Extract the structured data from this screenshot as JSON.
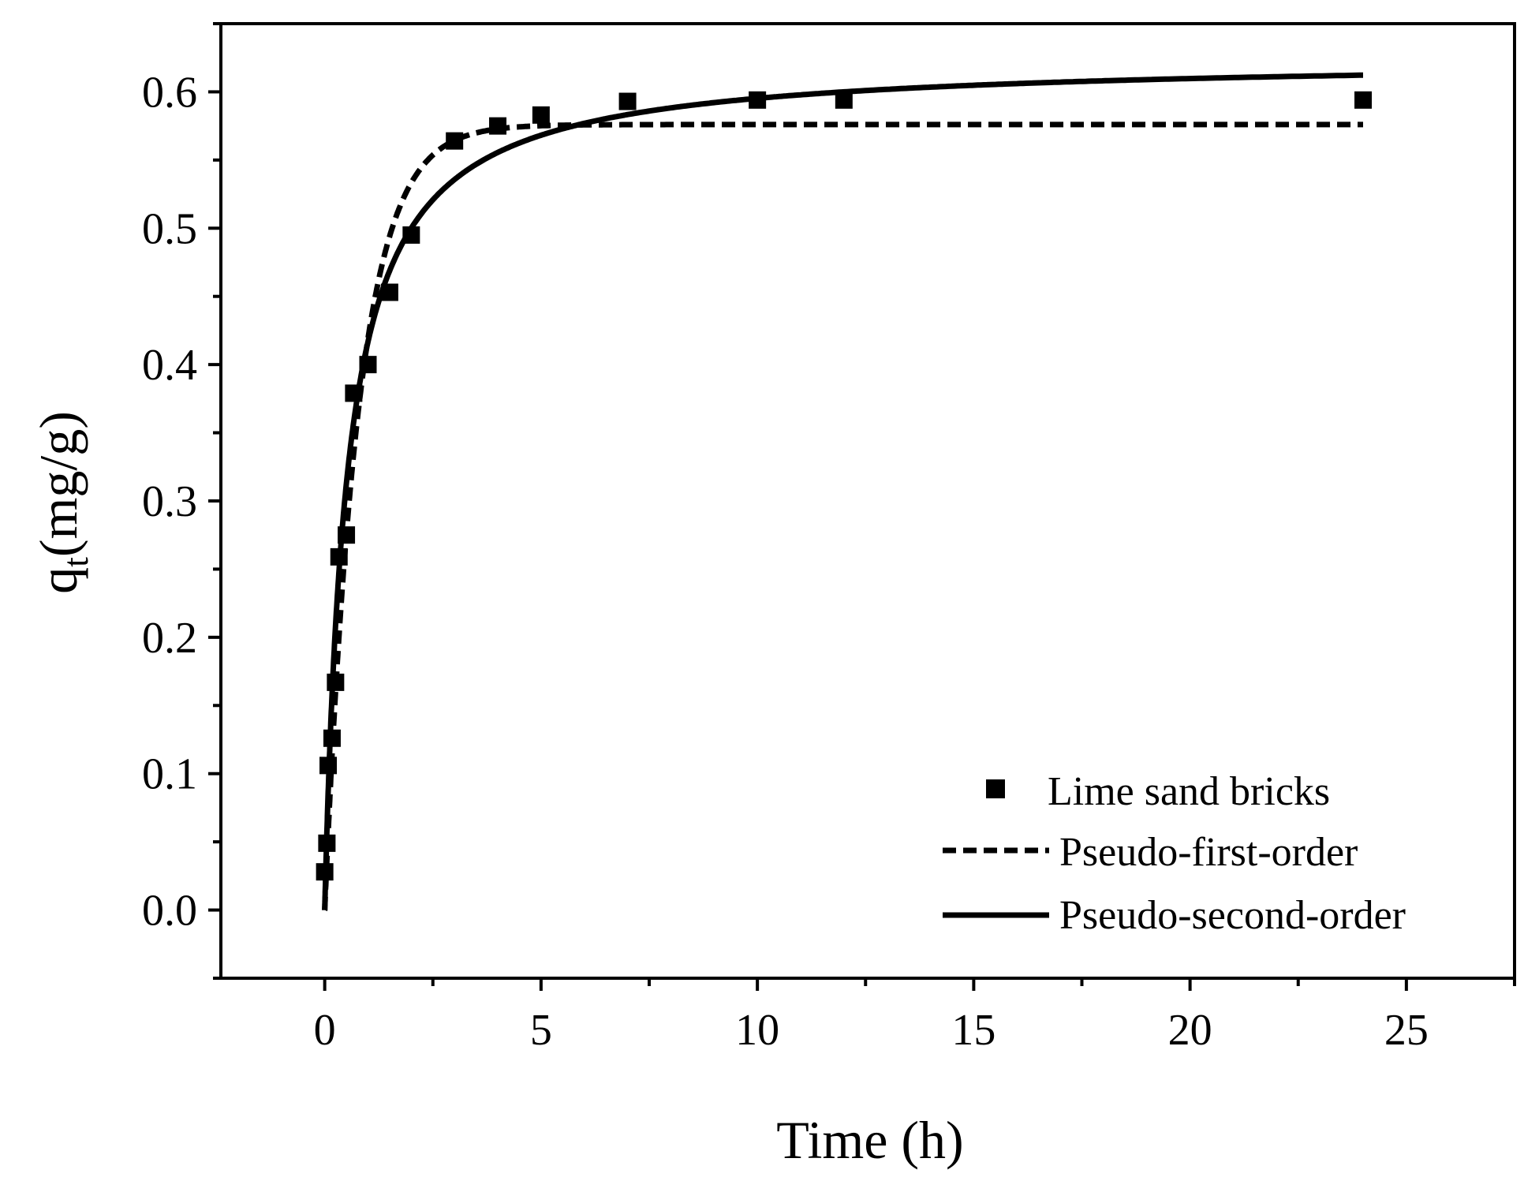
{
  "chart_data": {
    "type": "scatter",
    "title": "",
    "xlabel": "Time (h)",
    "ylabel_main": "q",
    "ylabel_sub": "t",
    "ylabel_unit": "(mg/g)",
    "xlim": [
      -2.4,
      27.5
    ],
    "ylim": [
      -0.05,
      0.65
    ],
    "x_ticks": [
      0,
      5,
      10,
      15,
      20,
      25
    ],
    "x_tick_labels": [
      "0",
      "5",
      "10",
      "15",
      "20",
      "25"
    ],
    "y_ticks": [
      0.0,
      0.1,
      0.2,
      0.3,
      0.4,
      0.5,
      0.6
    ],
    "y_tick_labels": [
      "0.0",
      "0.1",
      "0.2",
      "0.3",
      "0.4",
      "0.5",
      "0.6"
    ],
    "grid": false,
    "legend_position": "bottom-right",
    "series": [
      {
        "name": "Lime sand bricks",
        "kind": "markers",
        "marker": "square",
        "color": "#000000",
        "x": [
          0.0,
          0.05,
          0.08,
          0.17,
          0.25,
          0.33,
          0.5,
          0.67,
          1.0,
          1.5,
          2.0,
          3.0,
          4.0,
          5.0,
          7.0,
          10.0,
          12.0,
          24.0
        ],
        "y": [
          0.028,
          0.049,
          0.106,
          0.126,
          0.167,
          0.259,
          0.275,
          0.379,
          0.4,
          0.453,
          0.495,
          0.564,
          0.575,
          0.583,
          0.593,
          0.594,
          0.594,
          0.594
        ]
      },
      {
        "name": "Pseudo-first-order",
        "kind": "line",
        "style": "dashed",
        "color": "#000000",
        "model": "pfo",
        "qe": 0.576,
        "k": 1.3,
        "t_range": [
          0.0,
          24.0
        ]
      },
      {
        "name": "Pseudo-second-order",
        "kind": "line",
        "style": "solid",
        "color": "#000000",
        "model": "pso",
        "qe": 0.625,
        "k": 3.2,
        "t_range": [
          0.0,
          24.0
        ]
      }
    ]
  }
}
